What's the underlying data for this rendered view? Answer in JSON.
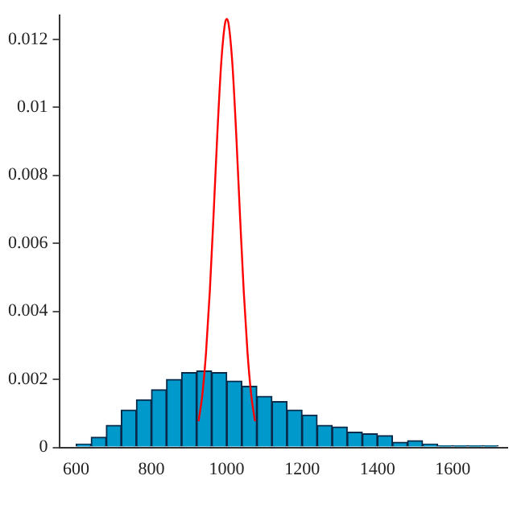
{
  "chart_data": {
    "type": "histogram",
    "bins": [
      600,
      640,
      680,
      720,
      760,
      800,
      840,
      880,
      920,
      960,
      1000,
      1040,
      1080,
      1120,
      1160,
      1200,
      1240,
      1280,
      1320,
      1360,
      1400,
      1440,
      1480,
      1520,
      1560,
      1600,
      1640,
      1680,
      1720
    ],
    "values": [
      0.0001,
      0.0003,
      0.00065,
      0.0011,
      0.0014,
      0.0017,
      0.002,
      0.0022,
      0.00225,
      0.0022,
      0.00195,
      0.0018,
      0.0015,
      0.00135,
      0.0011,
      0.00095,
      0.00065,
      0.0006,
      0.00045,
      0.0004,
      0.00035,
      0.00015,
      0.0002,
      0.0001,
      5e-05,
      5e-05,
      5e-05,
      5e-05
    ],
    "color": "#0099cc",
    "series": [
      {
        "type": "line",
        "color": "#ff0000",
        "x": [
          925,
          935,
          945,
          955,
          965,
          975,
          985,
          995,
          1000,
          1005,
          1015,
          1025,
          1035,
          1045,
          1055,
          1065,
          1075
        ],
        "values": [
          0.00077,
          0.00154,
          0.0028,
          0.0046,
          0.00685,
          0.00923,
          0.01126,
          0.01244,
          0.0126,
          0.01244,
          0.01126,
          0.00923,
          0.00685,
          0.0046,
          0.0028,
          0.00154,
          0.00077
        ]
      }
    ],
    "xlim": [
      555,
      1745
    ],
    "xticks": [
      600,
      800,
      1000,
      1200,
      1400,
      1600
    ],
    "ylim": [
      0,
      0.0127
    ],
    "yticks": [
      0,
      0.002,
      0.004,
      0.006,
      0.008,
      0.01,
      0.012
    ],
    "grid": false,
    "legend": false,
    "marker": "none"
  }
}
